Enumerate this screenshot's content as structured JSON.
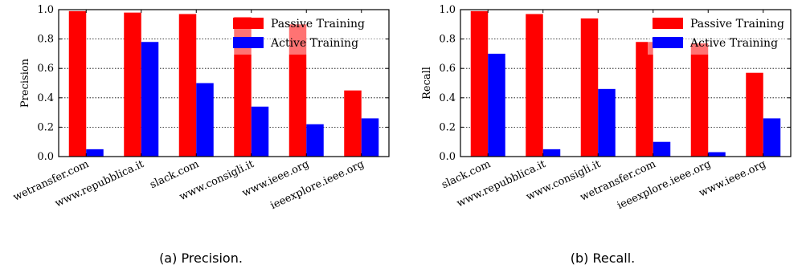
{
  "captions": [
    "(a) Precision.",
    "(b) Recall."
  ],
  "colors": {
    "passive": "#ff0000",
    "active": "#0000ff"
  },
  "chart_data": [
    {
      "type": "bar",
      "ylabel": "Precision",
      "xlabel": "",
      "ylim": [
        0,
        1.0
      ],
      "yticks": [
        "0.0",
        "0.2",
        "0.4",
        "0.6",
        "0.8",
        "1.0"
      ],
      "grid": "horizontal dotted",
      "legend": "top-right",
      "categories": [
        "wetransfer.com",
        "www.repubblica.it",
        "slack.com",
        "www.consigli.it",
        "www.ieee.org",
        "ieeexplore.ieee.org"
      ],
      "series": [
        {
          "name": "Passive Training",
          "color": "#ff0000",
          "values": [
            0.99,
            0.98,
            0.97,
            0.95,
            0.9,
            0.45
          ]
        },
        {
          "name": "Active Training",
          "color": "#0000ff",
          "values": [
            0.05,
            0.78,
            0.5,
            0.34,
            0.22,
            0.26
          ]
        }
      ]
    },
    {
      "type": "bar",
      "ylabel": "Recall",
      "xlabel": "",
      "ylim": [
        0,
        1.0
      ],
      "yticks": [
        "0.0",
        "0.2",
        "0.4",
        "0.6",
        "0.8",
        "1.0"
      ],
      "grid": "horizontal dotted",
      "legend": "top-right",
      "categories": [
        "slack.com",
        "www.repubblica.it",
        "www.consigli.it",
        "wetransfer.com",
        "ieeexplore.ieee.org",
        "www.ieee.org"
      ],
      "series": [
        {
          "name": "Passive Training",
          "color": "#ff0000",
          "values": [
            0.99,
            0.97,
            0.94,
            0.78,
            0.77,
            0.57
          ]
        },
        {
          "name": "Active Training",
          "color": "#0000ff",
          "values": [
            0.7,
            0.05,
            0.46,
            0.1,
            0.03,
            0.26
          ]
        }
      ]
    }
  ]
}
